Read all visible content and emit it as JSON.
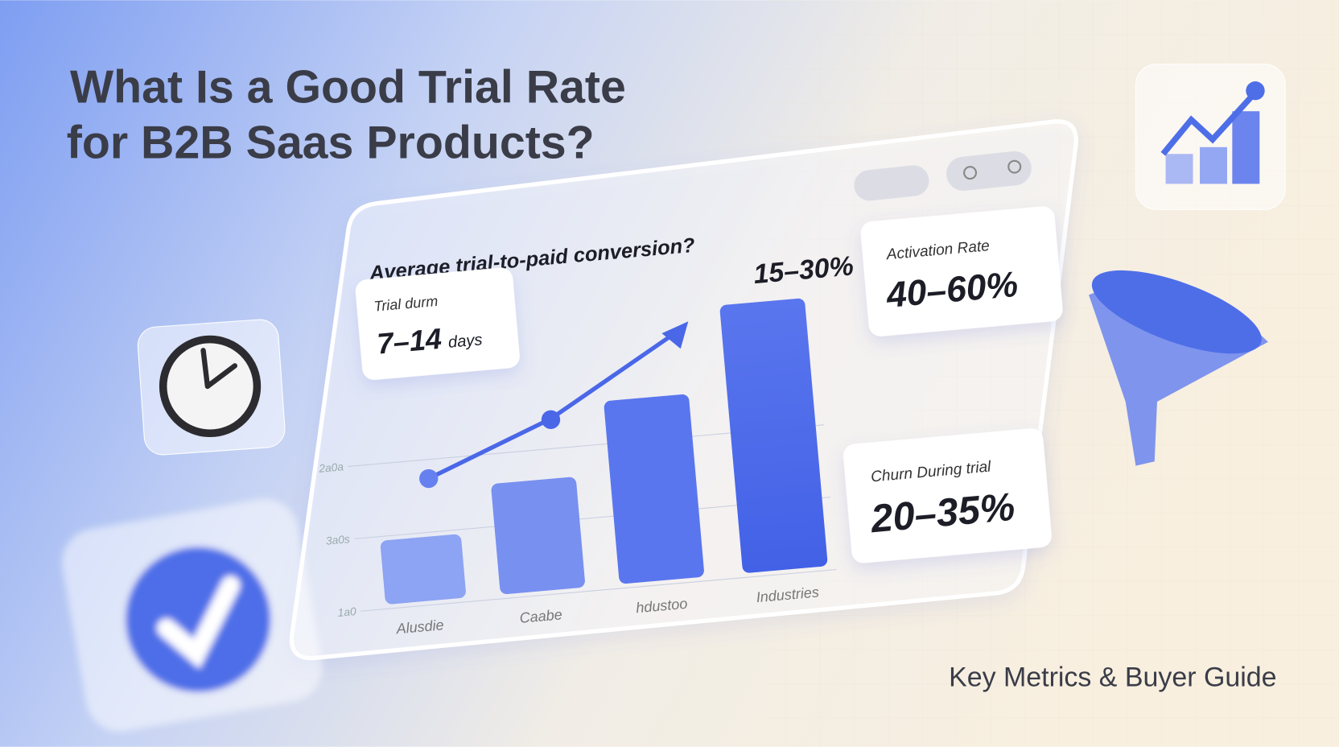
{
  "title": {
    "lines": [
      "What Is a Good Trial Rate",
      "for B2B Saas Products?"
    ]
  },
  "panel": {
    "heading": "Average trial-to-paid conversion?",
    "highlight": "15–30%",
    "axis_labels": [
      "2a0a",
      "3a0s",
      "1a0"
    ],
    "x_labels": [
      "Alusdie",
      "Caabe",
      "hdustoo",
      "Industries"
    ]
  },
  "cards": [
    {
      "label": "Trial durm",
      "value": "7–14",
      "unit": "days"
    },
    {
      "label": "Activation Rate",
      "value": "40–60%"
    },
    {
      "label": "Churn During trial",
      "value": "20–35%"
    }
  ],
  "footer": "Key Metrics & Buyer Guide"
}
